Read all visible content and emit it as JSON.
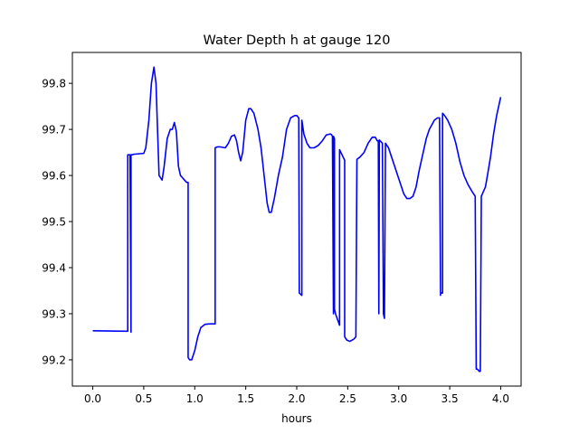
{
  "chart_data": {
    "type": "line",
    "title": "Water Depth h at gauge 120",
    "xlabel": "hours",
    "ylabel": "",
    "xlim": [
      -0.2,
      4.2
    ],
    "ylim": [
      99.143,
      99.867
    ],
    "xticks": [
      0.0,
      0.5,
      1.0,
      1.5,
      2.0,
      2.5,
      3.0,
      3.5,
      4.0
    ],
    "xtick_labels": [
      "0.0",
      "0.5",
      "1.0",
      "1.5",
      "2.0",
      "2.5",
      "3.0",
      "3.5",
      "4.0"
    ],
    "yticks": [
      99.2,
      99.3,
      99.4,
      99.5,
      99.6,
      99.7,
      99.8
    ],
    "ytick_labels": [
      "99.2",
      "99.3",
      "99.4",
      "99.5",
      "99.6",
      "99.7",
      "99.8"
    ],
    "grid": false,
    "series": [
      {
        "color": "#0000ff",
        "x": [
          0.0,
          0.33,
          0.343,
          0.343,
          0.365,
          0.375,
          0.375,
          0.39,
          0.39,
          0.4,
          0.5,
          0.52,
          0.55,
          0.575,
          0.6,
          0.62,
          0.65,
          0.68,
          0.7,
          0.73,
          0.76,
          0.78,
          0.8,
          0.82,
          0.84,
          0.86,
          0.88,
          0.9,
          0.92,
          0.935,
          0.935,
          0.95,
          0.97,
          1.0,
          1.03,
          1.06,
          1.1,
          1.15,
          1.2,
          1.2,
          1.22,
          1.25,
          1.3,
          1.33,
          1.36,
          1.39,
          1.41,
          1.43,
          1.45,
          1.47,
          1.5,
          1.53,
          1.55,
          1.58,
          1.62,
          1.65,
          1.68,
          1.71,
          1.73,
          1.75,
          1.78,
          1.82,
          1.86,
          1.9,
          1.94,
          1.98,
          2.0,
          2.02,
          2.025,
          2.05,
          2.05,
          2.07,
          2.1,
          2.13,
          2.17,
          2.21,
          2.25,
          2.29,
          2.33,
          2.34,
          2.35,
          2.36,
          2.36,
          2.37,
          2.37,
          2.38,
          2.42,
          2.42,
          2.47,
          2.47,
          2.49,
          2.52,
          2.56,
          2.58,
          2.59,
          2.62,
          2.66,
          2.7,
          2.74,
          2.77,
          2.79,
          2.8,
          2.805,
          2.81,
          2.84,
          2.85,
          2.86,
          2.87,
          2.9,
          2.93,
          2.96,
          2.99,
          3.02,
          3.05,
          3.08,
          3.11,
          3.14,
          3.17,
          3.2,
          3.23,
          3.27,
          3.3,
          3.35,
          3.38,
          3.4,
          3.41,
          3.41,
          3.43,
          3.43,
          3.45,
          3.48,
          3.52,
          3.56,
          3.6,
          3.64,
          3.68,
          3.72,
          3.75,
          3.76,
          3.77,
          3.79,
          3.8,
          3.81,
          3.83,
          3.85,
          3.87,
          3.9,
          3.93,
          3.96,
          4.0
        ],
        "y": [
          99.263,
          99.262,
          99.262,
          99.645,
          99.645,
          99.26,
          99.645,
          99.645,
          99.645,
          99.646,
          99.648,
          99.66,
          99.72,
          99.8,
          99.835,
          99.8,
          99.6,
          99.59,
          99.62,
          99.68,
          99.7,
          99.7,
          99.715,
          99.695,
          99.62,
          99.6,
          99.595,
          99.59,
          99.585,
          99.585,
          99.205,
          99.2,
          99.2,
          99.22,
          99.25,
          99.27,
          99.277,
          99.278,
          99.278,
          99.66,
          99.662,
          99.662,
          99.66,
          99.67,
          99.685,
          99.688,
          99.675,
          99.65,
          99.632,
          99.65,
          99.72,
          99.745,
          99.745,
          99.735,
          99.7,
          99.66,
          99.6,
          99.54,
          99.52,
          99.52,
          99.55,
          99.6,
          99.64,
          99.7,
          99.725,
          99.73,
          99.73,
          99.725,
          99.345,
          99.34,
          99.72,
          99.69,
          99.67,
          99.66,
          99.66,
          99.665,
          99.675,
          99.688,
          99.69,
          99.689,
          99.685,
          99.3,
          99.685,
          99.68,
          99.31,
          99.3,
          99.275,
          99.656,
          99.633,
          99.25,
          99.243,
          99.24,
          99.245,
          99.25,
          99.635,
          99.64,
          99.65,
          99.67,
          99.683,
          99.683,
          99.675,
          99.675,
          99.3,
          99.677,
          99.67,
          99.3,
          99.29,
          99.67,
          99.66,
          99.64,
          99.62,
          99.6,
          99.58,
          99.56,
          99.55,
          99.55,
          99.555,
          99.575,
          99.61,
          99.64,
          99.68,
          99.7,
          99.72,
          99.725,
          99.725,
          99.34,
          99.345,
          99.345,
          99.735,
          99.73,
          99.72,
          99.7,
          99.67,
          99.63,
          99.6,
          99.58,
          99.565,
          99.555,
          99.18,
          99.18,
          99.175,
          99.175,
          99.555,
          99.565,
          99.575,
          99.6,
          99.64,
          99.69,
          99.73,
          99.77
        ]
      }
    ]
  }
}
